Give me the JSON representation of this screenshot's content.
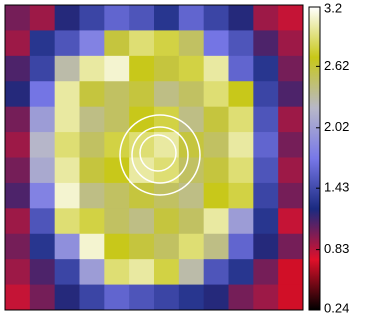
{
  "chart_data": {
    "type": "heatmap",
    "z": [
      [
        1.0,
        0.9,
        1.2,
        1.4,
        1.6,
        1.5,
        1.3,
        1.6,
        1.4,
        1.2,
        0.9,
        0.8
      ],
      [
        0.9,
        1.3,
        1.5,
        1.8,
        2.6,
        2.9,
        2.8,
        2.5,
        1.7,
        1.5,
        1.1,
        0.9
      ],
      [
        1.1,
        1.4,
        2.3,
        3.0,
        3.1,
        2.7,
        2.6,
        2.8,
        3.0,
        1.6,
        1.3,
        1.0
      ],
      [
        1.2,
        1.7,
        3.0,
        2.6,
        2.5,
        2.6,
        2.4,
        2.5,
        2.9,
        2.7,
        1.4,
        1.1
      ],
      [
        1.0,
        2.0,
        3.0,
        2.4,
        2.5,
        2.7,
        2.8,
        2.4,
        2.6,
        2.9,
        1.5,
        0.9
      ],
      [
        0.9,
        2.2,
        2.9,
        2.5,
        2.8,
        2.9,
        3.0,
        2.6,
        2.5,
        3.0,
        1.6,
        1.0
      ],
      [
        1.0,
        2.1,
        3.0,
        2.6,
        2.7,
        3.0,
        2.9,
        2.5,
        2.6,
        2.9,
        1.5,
        0.9
      ],
      [
        1.1,
        1.8,
        3.1,
        2.4,
        2.5,
        2.6,
        2.5,
        2.4,
        2.7,
        2.8,
        1.4,
        1.0
      ],
      [
        0.9,
        1.5,
        2.9,
        2.8,
        2.5,
        2.4,
        2.6,
        2.5,
        3.0,
        2.0,
        1.3,
        0.8
      ],
      [
        1.0,
        1.3,
        1.9,
        3.1,
        2.7,
        2.6,
        2.5,
        2.9,
        2.4,
        1.6,
        1.2,
        1.0
      ],
      [
        0.9,
        1.1,
        1.4,
        2.0,
        2.9,
        3.0,
        2.8,
        2.3,
        1.5,
        1.3,
        1.0,
        0.7
      ],
      [
        0.8,
        1.0,
        1.2,
        1.4,
        1.6,
        1.5,
        1.4,
        1.3,
        1.2,
        1.0,
        0.9,
        0.7
      ]
    ],
    "colormap": [
      "#000000",
      "#e0102a",
      "#1a2a80",
      "#7878e8",
      "#b8b8c8",
      "#c8c818",
      "#ffffff"
    ],
    "clim": [
      0.24,
      3.2
    ],
    "cticks": [
      0.24,
      0.83,
      1.43,
      2.02,
      2.62,
      3.2
    ]
  }
}
